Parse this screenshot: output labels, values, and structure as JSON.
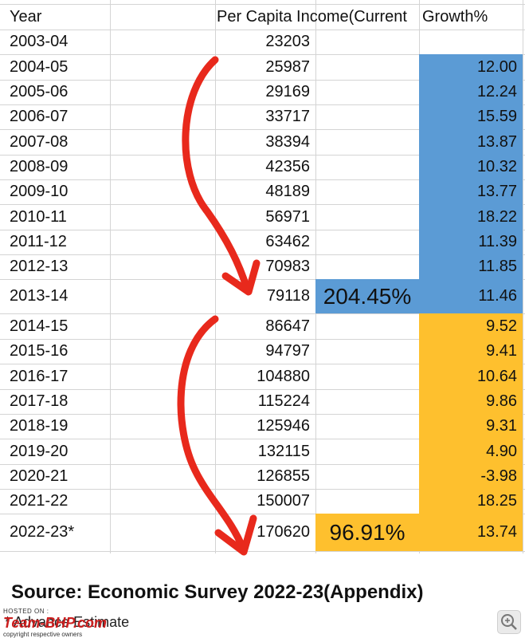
{
  "table": {
    "headers": {
      "year": "Year",
      "income": "Per Capita Income(Current",
      "growth": "Growth%"
    },
    "rows": [
      {
        "year": "2003-04",
        "income": "23203",
        "growth": ""
      },
      {
        "year": "2004-05",
        "income": "25987",
        "growth": "12.00"
      },
      {
        "year": "2005-06",
        "income": "29169",
        "growth": "12.24"
      },
      {
        "year": "2006-07",
        "income": "33717",
        "growth": "15.59"
      },
      {
        "year": "2007-08",
        "income": "38394",
        "growth": "13.87"
      },
      {
        "year": "2008-09",
        "income": "42356",
        "growth": "10.32"
      },
      {
        "year": "2009-10",
        "income": "48189",
        "growth": "13.77"
      },
      {
        "year": "2010-11",
        "income": "56971",
        "growth": "18.22"
      },
      {
        "year": "2011-12",
        "income": "63462",
        "growth": "11.39"
      },
      {
        "year": "2012-13",
        "income": "70983",
        "growth": "11.85"
      },
      {
        "year": "2013-14",
        "income": "79118",
        "growth": "11.46"
      },
      {
        "year": "2014-15",
        "income": "86647",
        "growth": "9.52"
      },
      {
        "year": "2015-16",
        "income": "94797",
        "growth": "9.41"
      },
      {
        "year": "2016-17",
        "income": "104880",
        "growth": "10.64"
      },
      {
        "year": "2017-18",
        "income": "115224",
        "growth": "9.86"
      },
      {
        "year": "2018-19",
        "income": "125946",
        "growth": "9.31"
      },
      {
        "year": "2019-20",
        "income": "132115",
        "growth": "4.90"
      },
      {
        "year": "2020-21",
        "income": "126855",
        "growth": "-3.98"
      },
      {
        "year": "2021-22",
        "income": "150007",
        "growth": "18.25"
      },
      {
        "year": "2022-23*",
        "income": "170620",
        "growth": "13.74"
      }
    ],
    "highlights": [
      {
        "label": "204.45%",
        "row_index": 10,
        "color": "#5b9bd5"
      },
      {
        "label": "96.91%",
        "row_index": 19,
        "color": "#fec02e"
      }
    ],
    "growth_colors": {
      "first_period": "#5b9bd5",
      "second_period": "#fec02e"
    }
  },
  "source_text": "Source: Economic Survey 2022-23(Appendix)",
  "footer_text": "* Advance Estimate",
  "watermark": {
    "hosted_on": "HOSTED ON :",
    "brand": "Team-BHP.com",
    "copyright": "copyright respective owners"
  },
  "arrow_color": "#e8291c",
  "icons": {
    "zoom": "zoom-icon"
  }
}
